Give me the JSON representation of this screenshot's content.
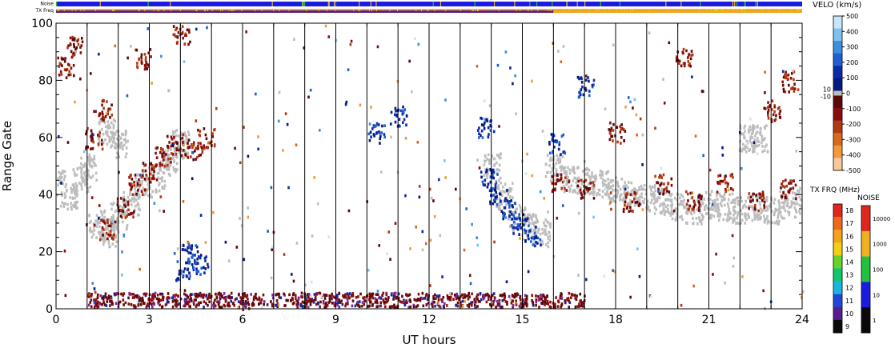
{
  "chart_data": {
    "type": "heatmap",
    "title": "",
    "xlabel": "UT hours",
    "ylabel": "Range Gate",
    "xlim": [
      0,
      24
    ],
    "ylim": [
      0,
      100
    ],
    "x_ticks": [
      0,
      3,
      6,
      9,
      12,
      15,
      18,
      21,
      24
    ],
    "y_ticks": [
      0,
      20,
      40,
      60,
      80,
      100
    ],
    "grid": "vertical lines every hour",
    "legend_placement": "right",
    "strip_labels": {
      "noise": "Noise",
      "txfreq": "TX Freq"
    },
    "velocity_scale": {
      "title": "VELO (km/s)",
      "ticks": [
        "500",
        "400",
        "300",
        "200",
        "100",
        "0",
        "-100",
        "-200",
        "-300",
        "-400",
        "-500"
      ],
      "inner_ticks": [
        "10",
        "-10"
      ],
      "positive_colors": [
        "#c8e6f8",
        "#7dc2ee",
        "#3c8fdc",
        "#1f5fcf",
        "#0a2aa8",
        "#051a80"
      ],
      "negative_colors": [
        "#5c0808",
        "#8a0d0d",
        "#b23a12",
        "#d9691c",
        "#f29a3a",
        "#f8c89a"
      ],
      "ground_scatter_color": "#bdbdbd"
    },
    "txfreq_scale": {
      "title": "TX FRQ (MHz)",
      "ticks": [
        "18",
        "17",
        "16",
        "15",
        "14",
        "13",
        "12",
        "11",
        "10",
        "9"
      ],
      "colors": [
        "#e0261f",
        "#ee6a1a",
        "#f4a21a",
        "#f0d010",
        "#66d22a",
        "#12c66e",
        "#1ab4e0",
        "#2048d8",
        "#5a1c8c",
        "#0a0a0a"
      ]
    },
    "noise_scale": {
      "title": "NOISE",
      "ticks": [
        "10000",
        "1000",
        "100",
        "10",
        "1"
      ],
      "colors": [
        "#e0261f",
        "#f0b020",
        "#20c040",
        "#1a1ae0",
        "#0a0a0a"
      ]
    },
    "scatter_regions": [
      {
        "kind": "ground",
        "points": [
          [
            0.0,
            44
          ],
          [
            0.4,
            40
          ],
          [
            0.8,
            46
          ],
          [
            1.0,
            50
          ],
          [
            1.3,
            30
          ],
          [
            1.7,
            27
          ],
          [
            2.0,
            33
          ],
          [
            2.4,
            38
          ],
          [
            2.8,
            44
          ],
          [
            3.2,
            46
          ],
          [
            3.6,
            52
          ],
          [
            4.0,
            58
          ],
          [
            14.0,
            50
          ],
          [
            14.4,
            40
          ],
          [
            14.8,
            32
          ],
          [
            15.2,
            29
          ],
          [
            15.6,
            27
          ],
          [
            16.0,
            50
          ],
          [
            16.5,
            46
          ],
          [
            17.0,
            45
          ],
          [
            17.5,
            44
          ],
          [
            18.0,
            42
          ],
          [
            18.5,
            40
          ],
          [
            19.0,
            39
          ],
          [
            19.5,
            38
          ],
          [
            20.0,
            36
          ],
          [
            20.5,
            35
          ],
          [
            21.0,
            37
          ],
          [
            21.5,
            36
          ],
          [
            22.0,
            35
          ],
          [
            22.5,
            36
          ],
          [
            23.0,
            35
          ],
          [
            23.5,
            37
          ],
          [
            24.0,
            38
          ],
          [
            1.6,
            62
          ],
          [
            2.0,
            58
          ],
          [
            22.2,
            60
          ],
          [
            22.6,
            60
          ]
        ],
        "spread": 4
      },
      {
        "kind": "negative_velocity",
        "points": [
          [
            0.3,
            85
          ],
          [
            0.6,
            92
          ],
          [
            1.2,
            60
          ],
          [
            1.6,
            28
          ],
          [
            2.2,
            36
          ],
          [
            2.6,
            44
          ],
          [
            3.0,
            48
          ],
          [
            3.4,
            54
          ],
          [
            3.8,
            58
          ],
          [
            4.4,
            56
          ],
          [
            4.8,
            60
          ],
          [
            1.5,
            70
          ],
          [
            2.8,
            88
          ],
          [
            4.0,
            96
          ],
          [
            16.2,
            45
          ],
          [
            17.0,
            42
          ],
          [
            18.5,
            38
          ],
          [
            19.5,
            44
          ],
          [
            20.5,
            38
          ],
          [
            21.5,
            44
          ],
          [
            22.5,
            38
          ],
          [
            23.5,
            42
          ],
          [
            23.0,
            70
          ],
          [
            23.6,
            80
          ],
          [
            20.2,
            88
          ],
          [
            18.0,
            62
          ]
        ],
        "spread": 3
      },
      {
        "kind": "positive_velocity",
        "points": [
          [
            13.9,
            46
          ],
          [
            14.2,
            40
          ],
          [
            14.5,
            35
          ],
          [
            14.9,
            30
          ],
          [
            15.3,
            26
          ],
          [
            4.3,
            20
          ],
          [
            4.6,
            16
          ],
          [
            4.1,
            14
          ],
          [
            13.8,
            64
          ],
          [
            10.3,
            62
          ],
          [
            11.0,
            68
          ],
          [
            17.0,
            78
          ],
          [
            16.1,
            58
          ]
        ],
        "spread": 3
      }
    ],
    "near_range_band": {
      "x_range": [
        1,
        17
      ],
      "gates": [
        0,
        5
      ],
      "kind": "negative_velocity"
    }
  }
}
